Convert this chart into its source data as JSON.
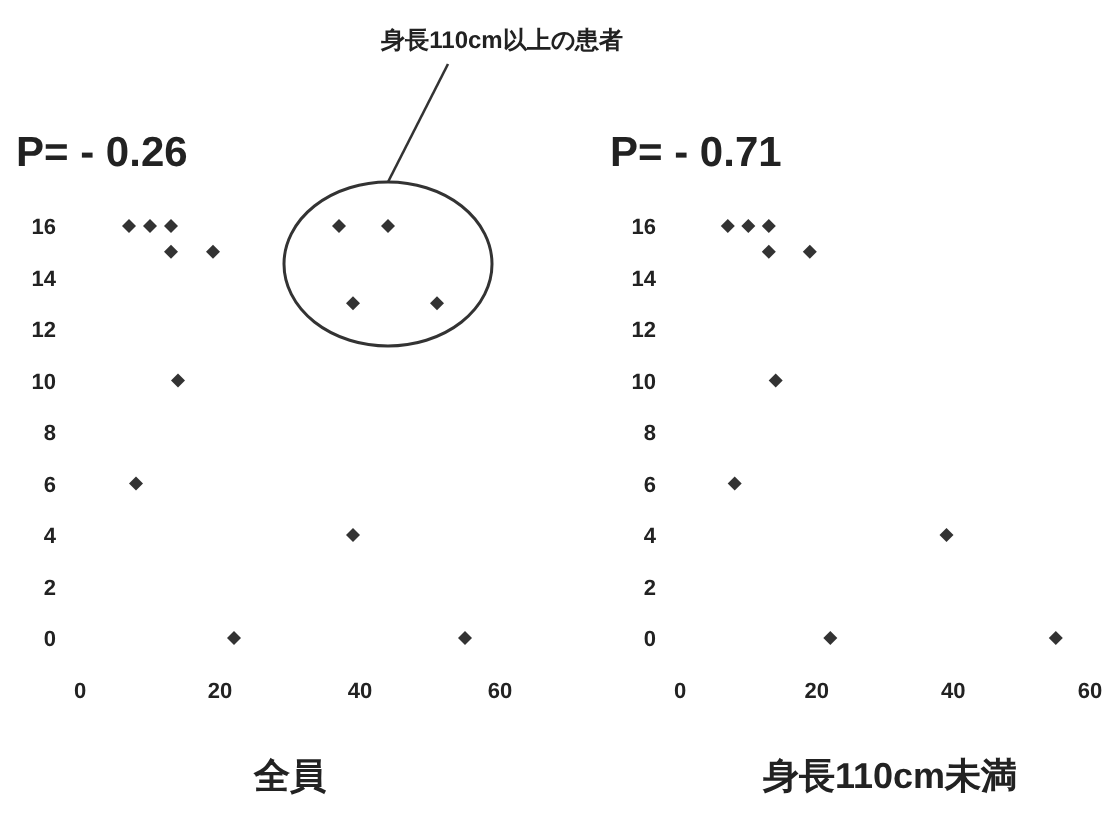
{
  "chart_data": [
    {
      "type": "scatter",
      "title": "P= - 0.26",
      "xlabel": "全員",
      "marker": "diamond",
      "grid": false,
      "xlim": [
        0,
        60
      ],
      "ylim": [
        0,
        16
      ],
      "xticks": [
        0,
        20,
        40,
        60
      ],
      "yticks": [
        0,
        2,
        4,
        6,
        8,
        10,
        12,
        14,
        16
      ],
      "x": [
        7,
        10,
        13,
        13,
        19,
        14,
        8,
        39,
        22,
        55,
        37,
        44,
        39,
        51
      ],
      "series": [
        {
          "color": "#333333",
          "values": [
            16,
            16,
            16,
            15,
            15,
            10,
            6,
            4,
            0,
            0,
            16,
            16,
            13,
            13
          ]
        }
      ],
      "annotations": [
        "身長110cm以上の患者"
      ]
    },
    {
      "type": "scatter",
      "title": "P= - 0.71",
      "xlabel": "身長110cm未満",
      "marker": "diamond",
      "grid": false,
      "xlim": [
        0,
        60
      ],
      "ylim": [
        0,
        16
      ],
      "xticks": [
        0,
        20,
        40,
        60
      ],
      "yticks": [
        0,
        2,
        4,
        6,
        8,
        10,
        12,
        14,
        16
      ],
      "x": [
        7,
        10,
        13,
        13,
        19,
        14,
        8,
        39,
        22,
        55
      ],
      "series": [
        {
          "color": "#333333",
          "values": [
            16,
            16,
            16,
            15,
            15,
            10,
            6,
            4,
            0,
            0
          ]
        }
      ]
    }
  ]
}
